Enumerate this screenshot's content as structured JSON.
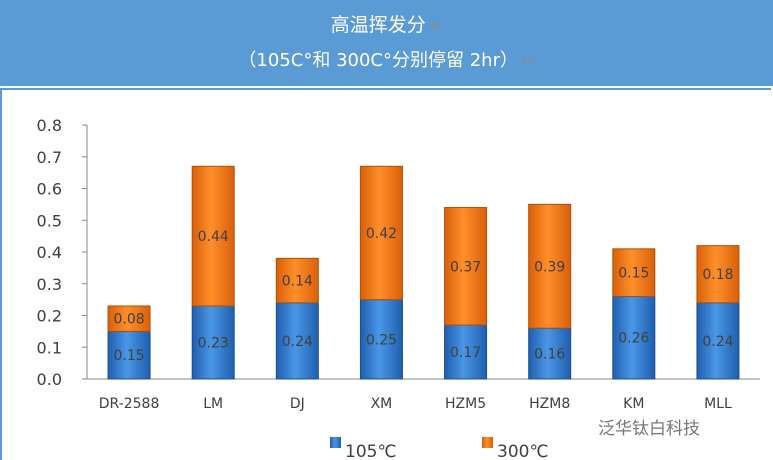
{
  "header": {
    "title": "高温挥发分",
    "subtitle": "（105C°和 300C°分别停留 2hr）",
    "return_mark": "↵"
  },
  "watermark": "泛华钛白科技",
  "chart_data": {
    "type": "bar",
    "stacked": true,
    "title": "高温挥发分",
    "subtitle": "（105C°和 300C°分别停留 2hr）",
    "categories": [
      "DR-2588",
      "LM",
      "DJ",
      "XM",
      "HZM5",
      "HZM8",
      "KM",
      "MLL"
    ],
    "series": [
      {
        "name": "105℃",
        "color": "#2e75c8",
        "values": [
          0.15,
          0.23,
          0.24,
          0.25,
          0.17,
          0.16,
          0.26,
          0.24
        ]
      },
      {
        "name": "300℃",
        "color": "#f07a1a",
        "values": [
          0.08,
          0.44,
          0.14,
          0.42,
          0.37,
          0.39,
          0.15,
          0.18
        ]
      }
    ],
    "ylim": [
      0,
      0.8
    ],
    "yticks": [
      "0.0",
      "0.1",
      "0.2",
      "0.3",
      "0.4",
      "0.5",
      "0.6",
      "0.7",
      "0.8"
    ],
    "grid": false,
    "legend": "bottom"
  }
}
